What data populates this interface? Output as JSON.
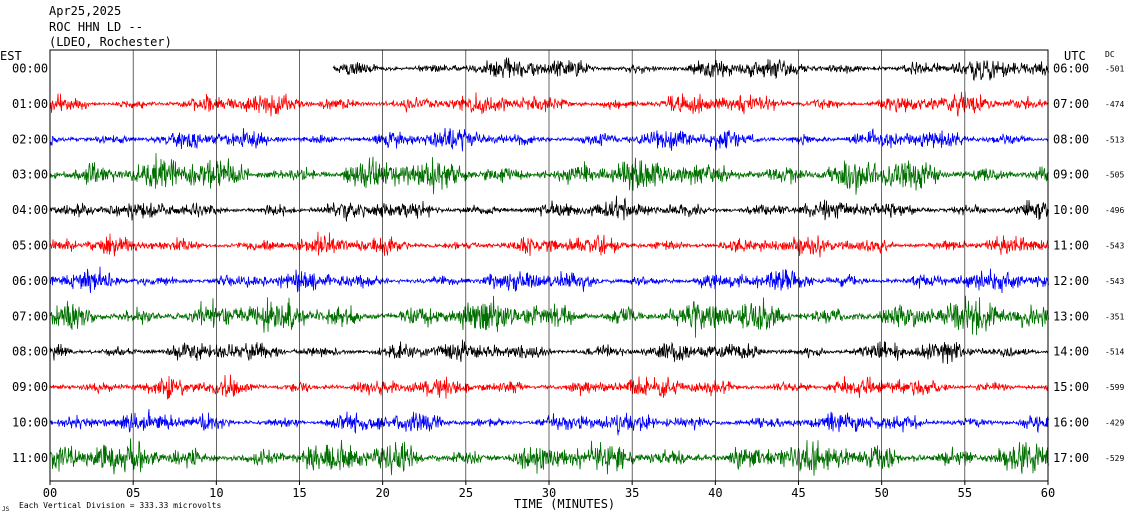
{
  "header": {
    "date": "Apr25,2025",
    "station": "ROC HHN LD --",
    "network": "(LDEO, Rochester)"
  },
  "footer": {
    "note": "Each Vertical Division =  333.33 microvolts",
    "mark": "JS"
  },
  "chart_data": {
    "type": "line",
    "title": "",
    "xlabel": "TIME (MINUTES)",
    "left_axis_label": "EST",
    "right_axis_label": "UTC",
    "dc_label": "DC",
    "xlim": [
      0,
      60
    ],
    "x_ticks": [
      "00",
      "05",
      "10",
      "15",
      "20",
      "25",
      "30",
      "35",
      "40",
      "45",
      "50",
      "55",
      "60"
    ],
    "trace_colors": [
      "#000000",
      "#ff0000",
      "#0000ff",
      "#007000"
    ],
    "rows": [
      {
        "est": "00:00",
        "utc": "06:00",
        "dc": "-501",
        "start_min": 17
      },
      {
        "est": "01:00",
        "utc": "07:00",
        "dc": "-474",
        "start_min": 0
      },
      {
        "est": "02:00",
        "utc": "08:00",
        "dc": "-513",
        "start_min": 0
      },
      {
        "est": "03:00",
        "utc": "09:00",
        "dc": "-505",
        "start_min": 0
      },
      {
        "est": "04:00",
        "utc": "10:00",
        "dc": "-496",
        "start_min": 0
      },
      {
        "est": "05:00",
        "utc": "11:00",
        "dc": "-543",
        "start_min": 0
      },
      {
        "est": "06:00",
        "utc": "12:00",
        "dc": "-543",
        "start_min": 0
      },
      {
        "est": "07:00",
        "utc": "13:00",
        "dc": "-351",
        "start_min": 0
      },
      {
        "est": "08:00",
        "utc": "14:00",
        "dc": "-514",
        "start_min": 0
      },
      {
        "est": "09:00",
        "utc": "15:00",
        "dc": "-599",
        "start_min": 0
      },
      {
        "est": "10:00",
        "utc": "16:00",
        "dc": "-429",
        "start_min": 0
      },
      {
        "est": "11:00",
        "utc": "17:00",
        "dc": "-529",
        "start_min": 0
      }
    ]
  }
}
